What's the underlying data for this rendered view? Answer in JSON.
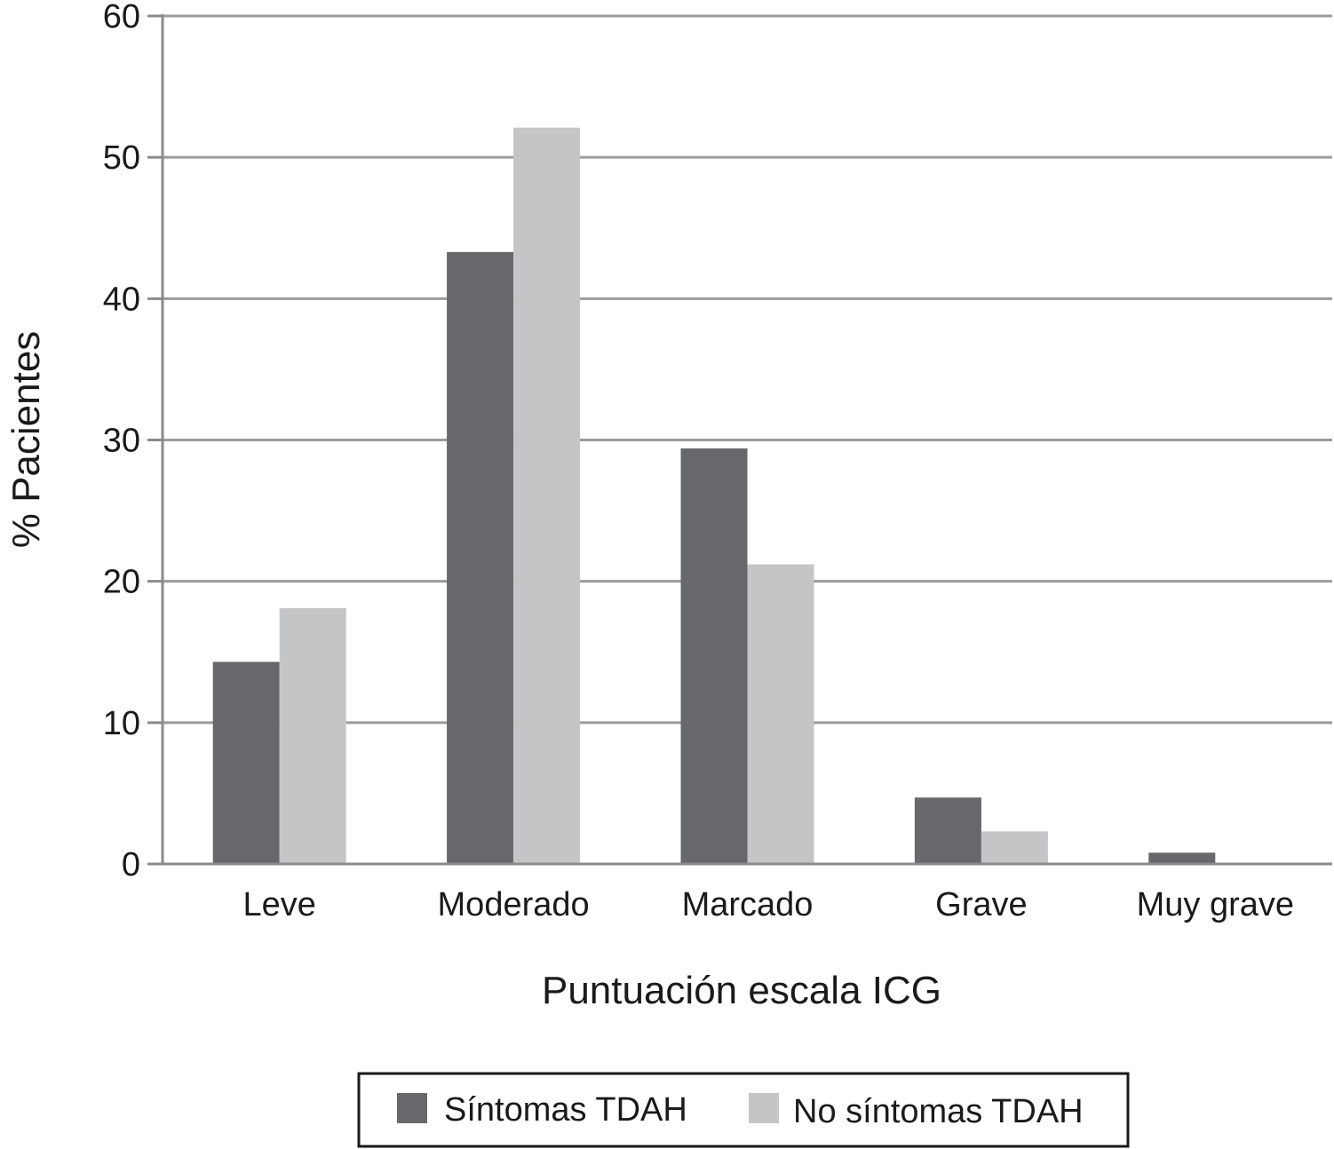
{
  "chart_data": {
    "type": "bar",
    "categories": [
      "Leve",
      "Moderado",
      "Marcado",
      "Grave",
      "Muy grave"
    ],
    "series": [
      {
        "name": "Síntomas TDAH",
        "values": [
          14.3,
          43.3,
          29.4,
          4.7,
          0.8
        ],
        "color": "#67686c"
      },
      {
        "name": "No síntomas TDAH",
        "values": [
          18.1,
          52.1,
          21.2,
          2.3,
          0
        ],
        "color": "#c4c5c7"
      }
    ],
    "title": "",
    "xlabel": "Puntuación escala ICG",
    "ylabel": "% Pacientes",
    "ylim": [
      0,
      60
    ],
    "yticks": [
      0,
      10,
      20,
      30,
      40,
      50,
      60
    ],
    "grid": true,
    "legend": "bottom-center"
  }
}
